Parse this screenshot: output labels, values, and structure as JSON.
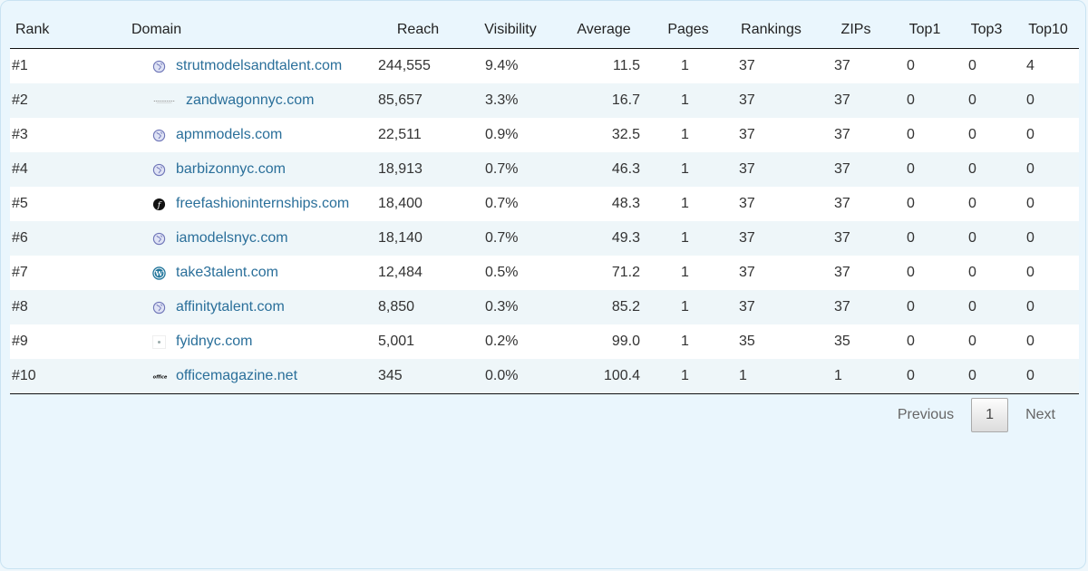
{
  "columns": [
    "Rank",
    "Domain",
    "Reach",
    "Visibility",
    "Average",
    "Pages",
    "Rankings",
    "ZIPs",
    "Top1",
    "Top3",
    "Top10"
  ],
  "rows": [
    {
      "rank": "#1",
      "icon": "globe-icon",
      "domain": "strutmodelsandtalent.com",
      "reach": "244,555",
      "visibility": "9.4%",
      "average": "11.5",
      "pages": "1",
      "rankings": "37",
      "zips": "37",
      "top1": "0",
      "top3": "0",
      "top10": "4"
    },
    {
      "rank": "#2",
      "icon": "site-logo-icon",
      "domain": "zandwagonnyc.com",
      "reach": "85,657",
      "visibility": "3.3%",
      "average": "16.7",
      "pages": "1",
      "rankings": "37",
      "zips": "37",
      "top1": "0",
      "top3": "0",
      "top10": "0"
    },
    {
      "rank": "#3",
      "icon": "globe-icon",
      "domain": "apmmodels.com",
      "reach": "22,511",
      "visibility": "0.9%",
      "average": "32.5",
      "pages": "1",
      "rankings": "37",
      "zips": "37",
      "top1": "0",
      "top3": "0",
      "top10": "0"
    },
    {
      "rank": "#4",
      "icon": "globe-icon",
      "domain": "barbizonnyc.com",
      "reach": "18,913",
      "visibility": "0.7%",
      "average": "46.3",
      "pages": "1",
      "rankings": "37",
      "zips": "37",
      "top1": "0",
      "top3": "0",
      "top10": "0"
    },
    {
      "rank": "#5",
      "icon": "f-logo-icon",
      "domain": "freefashioninternships.com",
      "reach": "18,400",
      "visibility": "0.7%",
      "average": "48.3",
      "pages": "1",
      "rankings": "37",
      "zips": "37",
      "top1": "0",
      "top3": "0",
      "top10": "0"
    },
    {
      "rank": "#6",
      "icon": "globe-icon",
      "domain": "iamodelsnyc.com",
      "reach": "18,140",
      "visibility": "0.7%",
      "average": "49.3",
      "pages": "1",
      "rankings": "37",
      "zips": "37",
      "top1": "0",
      "top3": "0",
      "top10": "0"
    },
    {
      "rank": "#7",
      "icon": "wordpress-icon",
      "domain": "take3talent.com",
      "reach": "12,484",
      "visibility": "0.5%",
      "average": "71.2",
      "pages": "1",
      "rankings": "37",
      "zips": "37",
      "top1": "0",
      "top3": "0",
      "top10": "0"
    },
    {
      "rank": "#8",
      "icon": "globe-icon",
      "domain": "affinitytalent.com",
      "reach": "8,850",
      "visibility": "0.3%",
      "average": "85.2",
      "pages": "1",
      "rankings": "37",
      "zips": "37",
      "top1": "0",
      "top3": "0",
      "top10": "0"
    },
    {
      "rank": "#9",
      "icon": "star-logo-icon",
      "domain": "fyidnyc.com",
      "reach": "5,001",
      "visibility": "0.2%",
      "average": "99.0",
      "pages": "1",
      "rankings": "35",
      "zips": "35",
      "top1": "0",
      "top3": "0",
      "top10": "0"
    },
    {
      "rank": "#10",
      "icon": "office-logo-icon",
      "domain": "officemagazine.net",
      "reach": "345",
      "visibility": "0.0%",
      "average": "100.4",
      "pages": "1",
      "rankings": "1",
      "zips": "1",
      "top1": "0",
      "top3": "0",
      "top10": "0"
    }
  ],
  "pagination": {
    "previous": "Previous",
    "current": "1",
    "next": "Next"
  },
  "colors": {
    "link": "#2a6f9a",
    "panel_bg": "#eaf6fd",
    "row_alt": "#eef6f9",
    "border": "#c9e3f2"
  }
}
